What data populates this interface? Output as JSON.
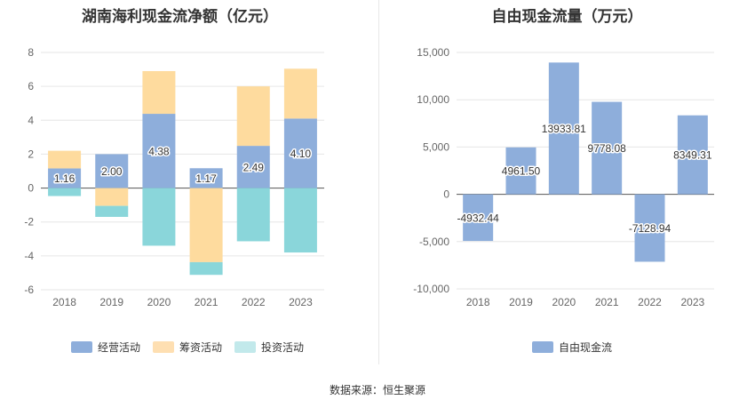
{
  "chart_data": [
    {
      "type": "bar",
      "stacked": true,
      "title": "湖南海利现金流净额（亿元）",
      "categories": [
        "2018",
        "2019",
        "2020",
        "2021",
        "2022",
        "2023"
      ],
      "ylim": [
        -6,
        8
      ],
      "yticks": [
        -6,
        -4,
        -2,
        0,
        2,
        4,
        6,
        8
      ],
      "series": [
        {
          "name": "经营活动",
          "color": "#8eaedb",
          "values": [
            1.16,
            2.0,
            4.38,
            1.17,
            2.49,
            4.1
          ]
        },
        {
          "name": "筹资活动",
          "color": "#fedb9e",
          "values": [
            1.04,
            -1.05,
            2.52,
            -4.37,
            3.51,
            2.94
          ]
        },
        {
          "name": "投资活动",
          "color": "#8ad6da",
          "values": [
            -0.47,
            -0.65,
            -3.4,
            -0.75,
            -3.14,
            -3.8
          ]
        }
      ],
      "labels": [
        "1.16",
        "2.00",
        "4.38",
        "1.17",
        "2.49",
        "4.10"
      ],
      "legend_colors": [
        "#8eaedb",
        "#fedfb2",
        "#c2e9eb"
      ]
    },
    {
      "type": "bar",
      "title": "自由现金流量（万元）",
      "categories": [
        "2018",
        "2019",
        "2020",
        "2021",
        "2022",
        "2023"
      ],
      "ylim": [
        -10000,
        15000
      ],
      "yticks": [
        -10000,
        -5000,
        0,
        5000,
        10000,
        15000
      ],
      "ytick_labels": [
        "-10,000",
        "-5,000",
        "0",
        "5,000",
        "10,000",
        "15,000"
      ],
      "series": [
        {
          "name": "自由现金流",
          "color": "#8eaedb",
          "values": [
            -4932.44,
            4961.5,
            13933.81,
            9778.08,
            -7128.94,
            8349.31
          ]
        }
      ],
      "labels": [
        "-4932.44",
        "4961.50",
        "13933.81",
        "9778.08",
        "-7128.94",
        "8349.31"
      ]
    }
  ],
  "source": "数据来源：恒生聚源"
}
